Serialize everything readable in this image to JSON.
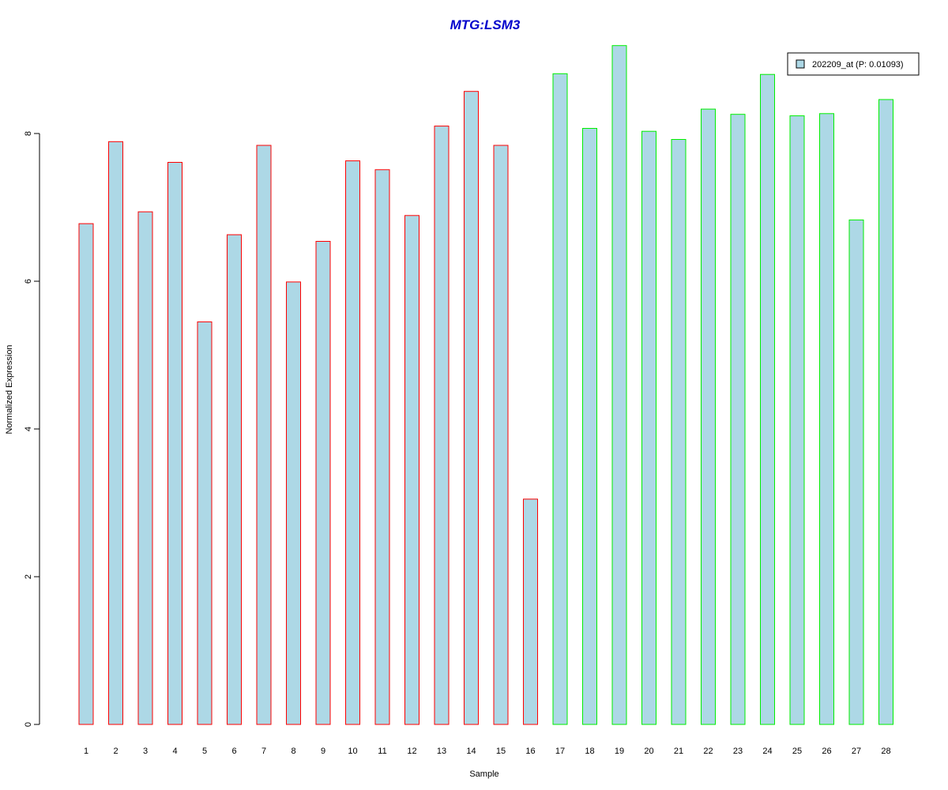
{
  "chart_data": {
    "type": "bar",
    "title": "MTG:LSM3",
    "xlabel": "Sample",
    "ylabel": "Normalized Expression",
    "categories": [
      "1",
      "2",
      "3",
      "4",
      "5",
      "6",
      "7",
      "8",
      "9",
      "10",
      "11",
      "12",
      "13",
      "14",
      "15",
      "16",
      "17",
      "18",
      "19",
      "20",
      "21",
      "22",
      "23",
      "24",
      "25",
      "26",
      "27",
      "28"
    ],
    "series": [
      {
        "name": "202209_at (P: 0.01093)",
        "values": [
          6.78,
          7.89,
          6.94,
          7.61,
          5.45,
          6.63,
          7.84,
          5.99,
          6.54,
          7.63,
          7.51,
          6.89,
          8.1,
          8.57,
          7.84,
          3.05,
          8.81,
          8.07,
          9.19,
          8.03,
          7.92,
          8.33,
          8.26,
          8.8,
          8.24,
          8.27,
          6.83,
          8.46
        ]
      }
    ],
    "group_colors": [
      "#ff0000",
      "#ff0000",
      "#ff0000",
      "#ff0000",
      "#ff0000",
      "#ff0000",
      "#ff0000",
      "#ff0000",
      "#ff0000",
      "#ff0000",
      "#ff0000",
      "#ff0000",
      "#ff0000",
      "#ff0000",
      "#ff0000",
      "#ff0000",
      "#00ee00",
      "#00ee00",
      "#00ee00",
      "#00ee00",
      "#00ee00",
      "#00ee00",
      "#00ee00",
      "#00ee00",
      "#00ee00",
      "#00ee00",
      "#00ee00",
      "#00ee00"
    ],
    "bar_fill": "#add8e6",
    "title_color": "#0000cc",
    "yticks": [
      0,
      2,
      4,
      6,
      8
    ],
    "ylim": [
      0,
      9.2
    ],
    "grid": false,
    "legend_position": "top-right"
  }
}
